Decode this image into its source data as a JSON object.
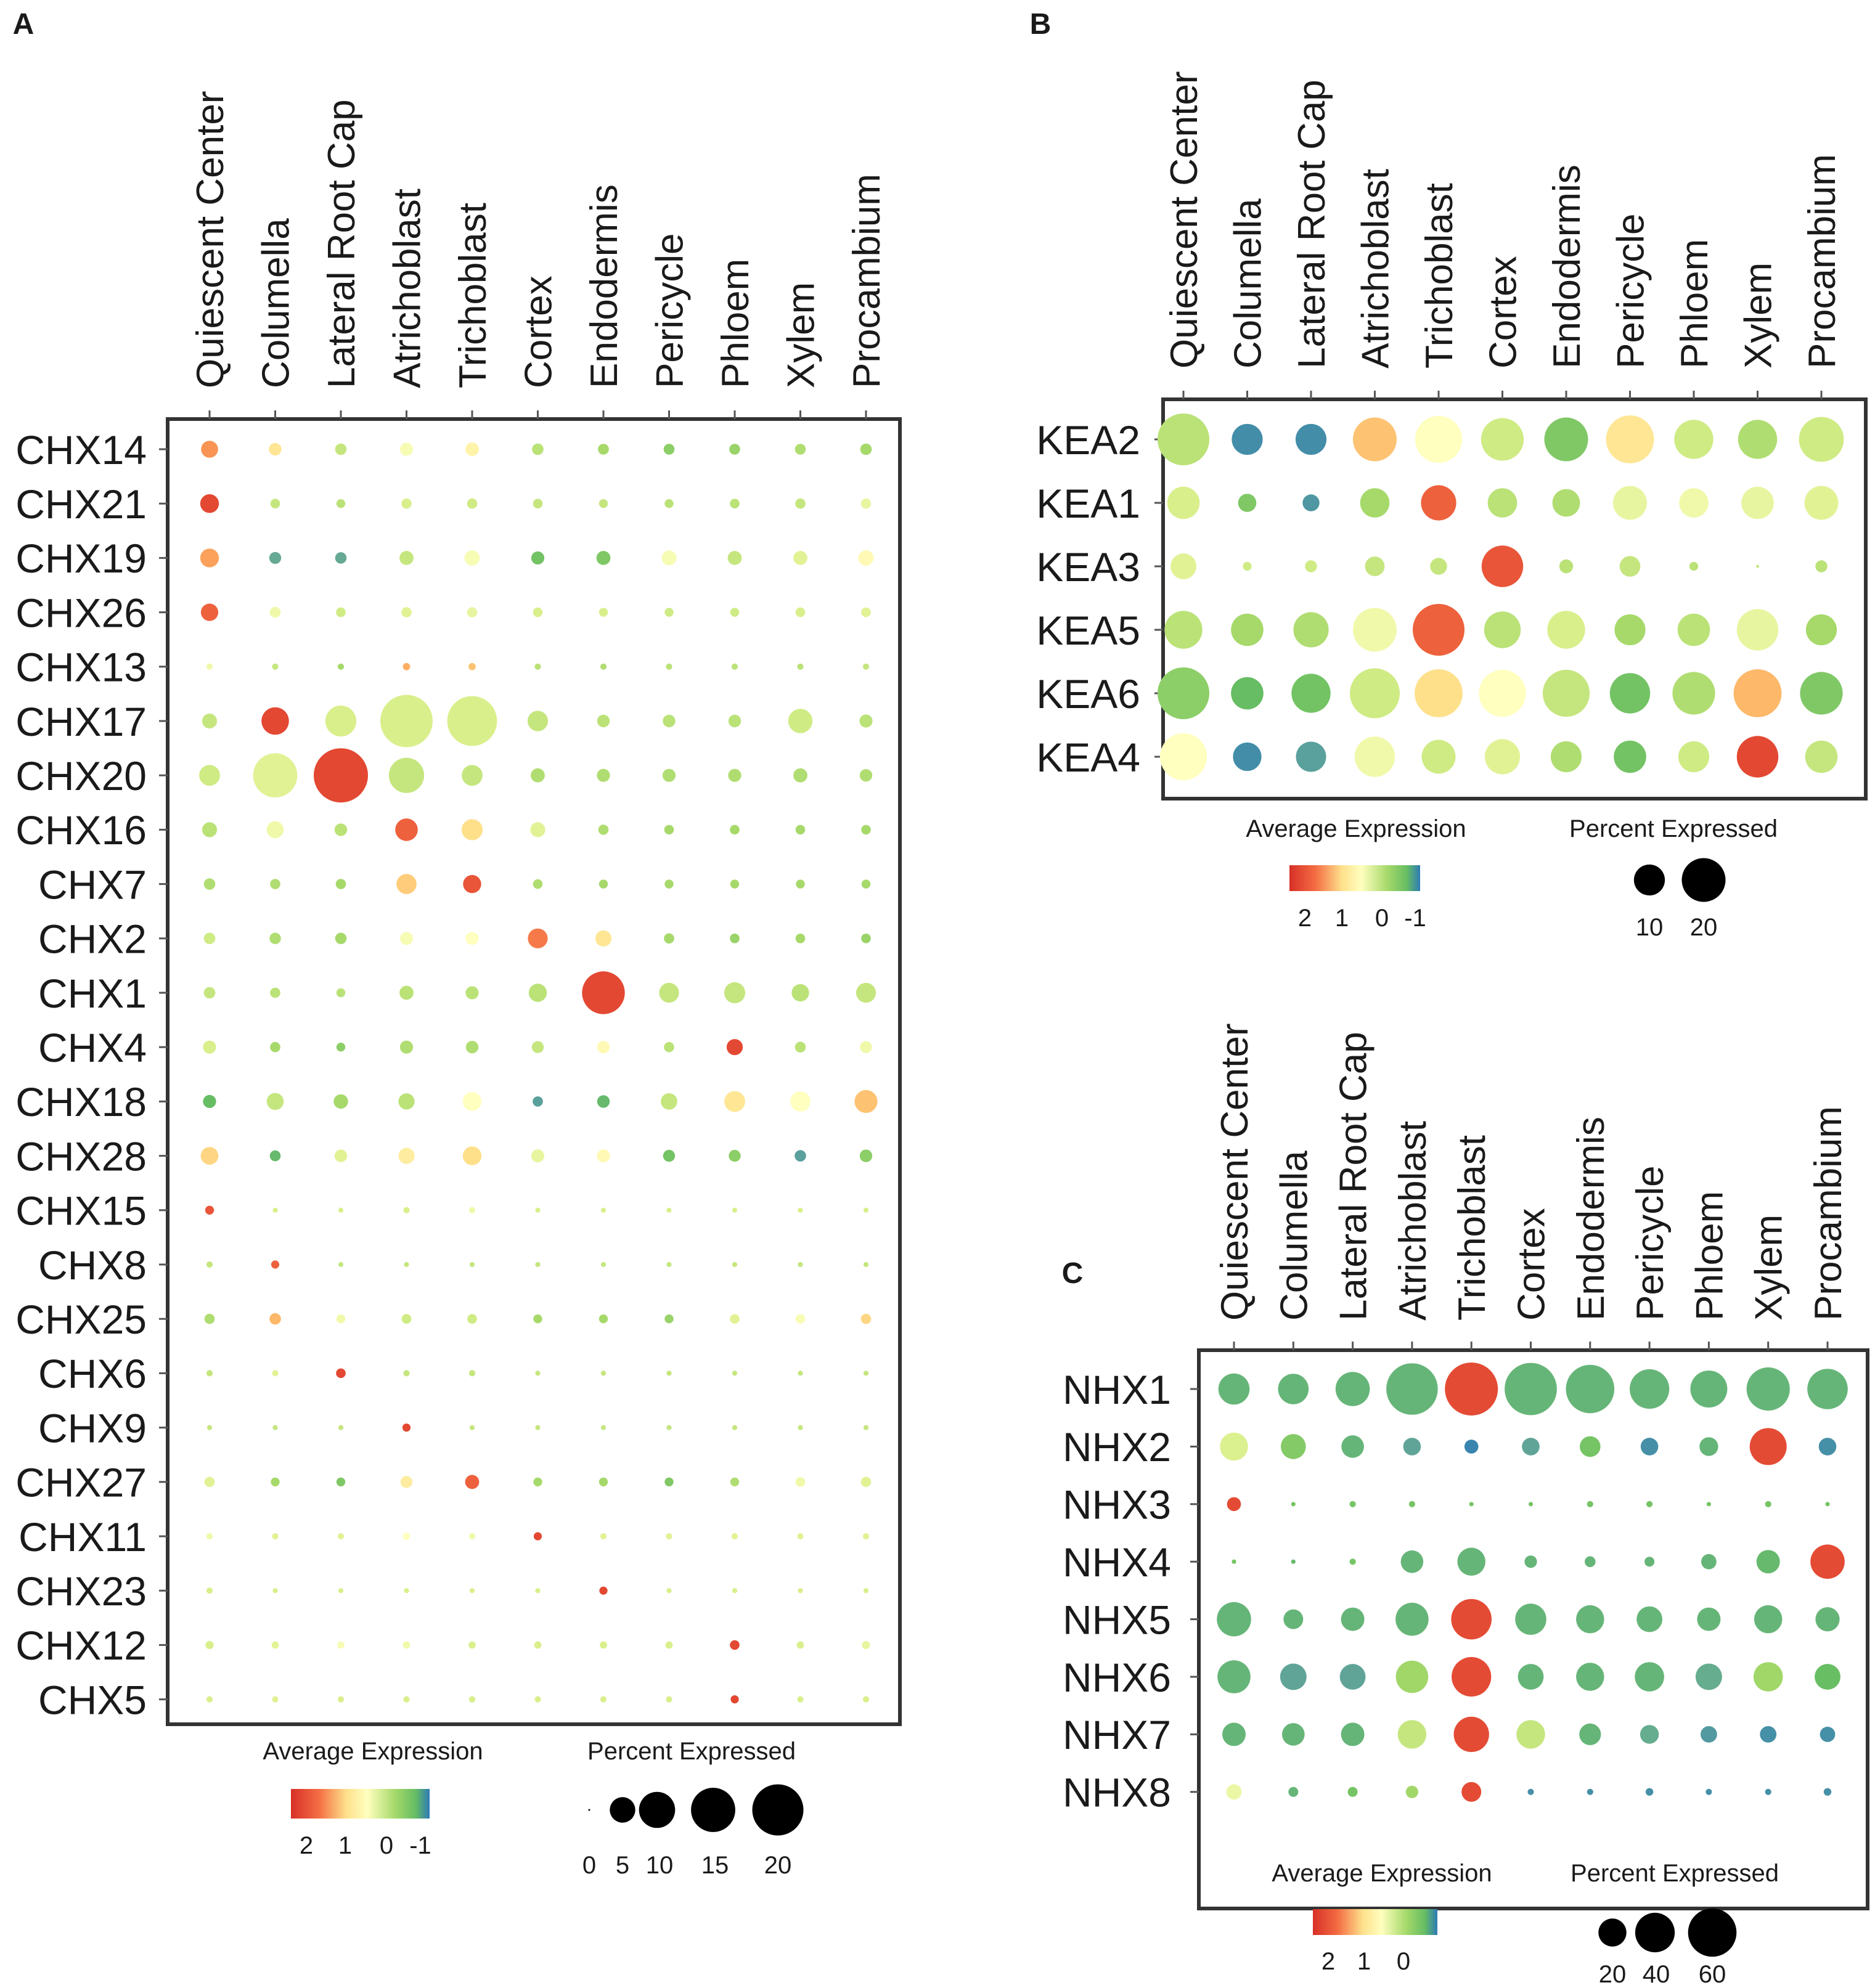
{
  "chart_data": [
    {
      "panel": "A",
      "type": "dotplot",
      "columns": [
        "Quiescent Center",
        "Columella",
        "Lateral Root Cap",
        "Atrichoblast",
        "Trichoblast",
        "Cortex",
        "Endodermis",
        "Pericycle",
        "Phloem",
        "Xylem",
        "Procambium"
      ],
      "rows": [
        "CHX14",
        "CHX21",
        "CHX19",
        "CHX26",
        "CHX13",
        "CHX17",
        "CHX20",
        "CHX16",
        "CHX7",
        "CHX2",
        "CHX1",
        "CHX4",
        "CHX18",
        "CHX28",
        "CHX15",
        "CHX8",
        "CHX25",
        "CHX6",
        "CHX9",
        "CHX27",
        "CHX11",
        "CHX23",
        "CHX12",
        "CHX5"
      ],
      "percent_expressed": [
        [
          2.2,
          1.2,
          1.0,
          1.3,
          1.4,
          1.0,
          0.9,
          0.9,
          0.9,
          0.9,
          1.0
        ],
        [
          2.7,
          0.7,
          0.6,
          0.8,
          0.8,
          0.7,
          0.6,
          0.6,
          0.7,
          0.8,
          0.8
        ],
        [
          2.7,
          1.1,
          1.0,
          1.5,
          1.8,
          1.3,
          1.5,
          1.7,
          1.5,
          1.5,
          1.8
        ],
        [
          2.3,
          0.9,
          0.7,
          0.8,
          0.8,
          0.7,
          0.6,
          0.6,
          0.6,
          0.7,
          0.7
        ],
        [
          0.3,
          0.3,
          0.3,
          0.4,
          0.4,
          0.3,
          0.3,
          0.3,
          0.3,
          0.3,
          0.3
        ],
        [
          1.7,
          5.8,
          7.3,
          21.0,
          19.0,
          3.2,
          1.2,
          1.2,
          1.2,
          4.5,
          1.3
        ],
        [
          3.3,
          15.0,
          22.5,
          9.5,
          3.3,
          1.5,
          1.3,
          1.3,
          1.3,
          1.5,
          1.2
        ],
        [
          1.7,
          2.2,
          1.2,
          3.9,
          3.4,
          1.7,
          0.8,
          0.7,
          0.7,
          0.7,
          0.7
        ],
        [
          1.0,
          0.8,
          0.8,
          3.1,
          2.5,
          0.7,
          0.6,
          0.6,
          0.6,
          0.6,
          0.6
        ],
        [
          1.0,
          1.0,
          1.0,
          1.3,
          1.3,
          3.0,
          2.0,
          0.8,
          0.7,
          0.7,
          0.7
        ],
        [
          1.0,
          0.8,
          0.6,
          1.5,
          1.3,
          2.5,
          14.0,
          3.0,
          3.4,
          2.3,
          3.0
        ],
        [
          1.3,
          0.8,
          0.6,
          1.3,
          1.2,
          1.1,
          1.2,
          0.8,
          2.0,
          0.9,
          1.1
        ],
        [
          1.3,
          2.2,
          1.6,
          2.0,
          2.7,
          0.8,
          1.2,
          2.1,
          3.3,
          3.1,
          4.0
        ],
        [
          2.4,
          0.9,
          1.2,
          2.0,
          2.7,
          1.3,
          1.3,
          1.1,
          1.1,
          1.0,
          1.2
        ],
        [
          0.6,
          0.2,
          0.2,
          0.3,
          0.3,
          0.2,
          0.2,
          0.2,
          0.2,
          0.2,
          0.2
        ],
        [
          0.3,
          0.5,
          0.2,
          0.2,
          0.2,
          0.2,
          0.2,
          0.2,
          0.2,
          0.2,
          0.2
        ],
        [
          0.8,
          1.0,
          0.6,
          0.7,
          0.7,
          0.6,
          0.6,
          0.6,
          0.7,
          0.7,
          0.8
        ],
        [
          0.3,
          0.3,
          0.7,
          0.3,
          0.3,
          0.2,
          0.2,
          0.2,
          0.2,
          0.2,
          0.2
        ],
        [
          0.2,
          0.2,
          0.2,
          0.5,
          0.2,
          0.2,
          0.2,
          0.2,
          0.2,
          0.2,
          0.2
        ],
        [
          0.8,
          0.6,
          0.6,
          1.1,
          1.5,
          0.6,
          0.6,
          0.6,
          0.6,
          0.7,
          0.8
        ],
        [
          0.3,
          0.3,
          0.3,
          0.4,
          0.3,
          0.5,
          0.3,
          0.3,
          0.3,
          0.3,
          0.3
        ],
        [
          0.3,
          0.2,
          0.2,
          0.2,
          0.2,
          0.2,
          0.5,
          0.2,
          0.2,
          0.2,
          0.2
        ],
        [
          0.5,
          0.4,
          0.4,
          0.4,
          0.4,
          0.4,
          0.4,
          0.4,
          0.7,
          0.4,
          0.5
        ],
        [
          0.3,
          0.3,
          0.3,
          0.3,
          0.3,
          0.3,
          0.3,
          0.3,
          0.5,
          0.3,
          0.3
        ]
      ],
      "average_expression": [
        [
          2.2,
          1.4,
          0.3,
          0.9,
          1.2,
          0.2,
          0.0,
          -0.2,
          -0.1,
          0.1,
          0.0
        ],
        [
          2.8,
          0.3,
          0.2,
          0.5,
          0.4,
          0.3,
          0.3,
          0.2,
          0.2,
          0.3,
          0.7
        ],
        [
          2.1,
          -1.0,
          -1.0,
          0.3,
          0.9,
          -0.4,
          -0.3,
          0.9,
          0.3,
          0.6,
          1.1
        ],
        [
          2.6,
          0.8,
          0.4,
          0.6,
          0.7,
          0.5,
          0.5,
          0.4,
          0.4,
          0.5,
          0.6
        ],
        [
          0.8,
          0.3,
          0.0,
          2.0,
          1.8,
          0.2,
          0.1,
          0.2,
          0.2,
          0.2,
          0.3
        ],
        [
          0.3,
          2.8,
          0.5,
          0.5,
          0.5,
          0.3,
          0.2,
          0.2,
          0.2,
          0.4,
          0.2
        ],
        [
          0.4,
          0.6,
          2.8,
          0.3,
          0.3,
          0.1,
          0.1,
          0.1,
          0.1,
          0.1,
          0.1
        ],
        [
          0.2,
          0.8,
          0.2,
          2.6,
          1.5,
          0.6,
          0.1,
          0.0,
          0.0,
          0.0,
          0.0
        ],
        [
          0.1,
          0.1,
          0.0,
          1.7,
          2.7,
          0.1,
          0.0,
          0.0,
          0.0,
          0.0,
          0.0
        ],
        [
          0.4,
          0.1,
          0.0,
          0.9,
          1.0,
          2.4,
          1.4,
          0.0,
          -0.1,
          0.0,
          -0.1
        ],
        [
          0.3,
          0.2,
          0.2,
          0.2,
          0.2,
          0.2,
          2.8,
          0.3,
          0.3,
          0.2,
          0.3
        ],
        [
          0.5,
          0.0,
          -0.2,
          0.1,
          0.1,
          0.3,
          1.1,
          0.2,
          2.8,
          0.2,
          0.8
        ],
        [
          -0.5,
          0.3,
          0.0,
          0.2,
          1.0,
          -1.1,
          -0.6,
          0.3,
          1.4,
          1.0,
          1.8
        ],
        [
          1.6,
          -0.6,
          0.6,
          1.3,
          1.5,
          0.7,
          1.1,
          -0.4,
          -0.2,
          -1.1,
          -0.2
        ],
        [
          2.7,
          0.5,
          0.5,
          0.5,
          0.8,
          0.5,
          0.5,
          0.5,
          0.5,
          0.5,
          0.5
        ],
        [
          0.3,
          2.6,
          0.3,
          0.3,
          0.3,
          0.3,
          0.3,
          0.3,
          0.3,
          0.3,
          0.3
        ],
        [
          0.1,
          1.9,
          0.8,
          0.4,
          0.4,
          0.0,
          0.0,
          -0.1,
          0.6,
          0.9,
          1.6
        ],
        [
          0.3,
          0.6,
          2.8,
          0.3,
          0.3,
          0.3,
          0.3,
          0.3,
          0.3,
          0.3,
          0.3
        ],
        [
          0.3,
          0.3,
          0.3,
          2.8,
          0.3,
          0.3,
          0.3,
          0.3,
          0.3,
          0.3,
          0.3
        ],
        [
          0.6,
          0.0,
          -0.3,
          1.3,
          2.6,
          0.0,
          0.0,
          -0.3,
          0.1,
          0.8,
          0.6
        ],
        [
          0.8,
          0.6,
          0.6,
          1.0,
          0.8,
          2.8,
          0.6,
          0.6,
          0.6,
          0.6,
          0.6
        ],
        [
          0.5,
          0.5,
          0.5,
          0.5,
          0.5,
          0.5,
          2.8,
          0.5,
          0.5,
          0.5,
          0.5
        ],
        [
          0.5,
          0.6,
          0.9,
          0.8,
          0.5,
          0.5,
          0.5,
          0.5,
          2.8,
          0.5,
          0.7
        ],
        [
          0.5,
          0.6,
          0.5,
          0.5,
          0.5,
          0.5,
          0.5,
          0.5,
          2.8,
          0.5,
          0.5
        ]
      ],
      "size_legend_title": "Percent Expressed",
      "size_legend_values": [
        0,
        5,
        10,
        15,
        20
      ],
      "size_legend_labels": [
        "0",
        "5",
        "10",
        "15",
        "20"
      ],
      "color_legend_title": "Average Expression",
      "color_legend_labels": [
        "2",
        "1",
        "0",
        "-1"
      ],
      "color_legend_values": [
        2,
        1,
        0,
        -1
      ],
      "color_range": [
        3,
        -1.5
      ]
    },
    {
      "panel": "B",
      "type": "dotplot",
      "columns": [
        "Quiescent Center",
        "Columella",
        "Lateral Root Cap",
        "Atrichoblast",
        "Trichoblast",
        "Cortex",
        "Endodermis",
        "Pericycle",
        "Phloem",
        "Xylem",
        "Procambium"
      ],
      "rows": [
        "KEA2",
        "KEA1",
        "KEA3",
        "KEA5",
        "KEA6",
        "KEA4"
      ],
      "percent_expressed": [
        [
          28,
          10,
          10,
          20,
          23,
          19,
          20,
          24,
          16,
          16,
          21
        ],
        [
          11,
          3.5,
          3,
          9,
          13,
          9,
          8,
          12,
          9,
          11,
          12
        ],
        [
          7,
          0.8,
          1.5,
          4,
          3,
          18,
          2,
          4.5,
          0.8,
          0.1,
          1.5
        ],
        [
          15,
          11,
          13,
          20,
          28,
          14,
          15,
          10,
          11,
          18,
          10
        ],
        [
          28,
          11,
          16,
          26,
          24,
          23,
          23,
          17,
          19,
          24,
          19
        ],
        [
          23,
          8.5,
          9.5,
          17,
          12,
          13,
          10,
          11,
          10,
          18,
          11
        ]
      ],
      "average_expression": [
        [
          0.2,
          -1.3,
          -1.3,
          1.8,
          1.0,
          0.4,
          -0.3,
          1.4,
          0.4,
          0.1,
          0.4
        ],
        [
          0.5,
          -0.3,
          -1.2,
          0.0,
          2.6,
          0.2,
          0.1,
          0.7,
          0.8,
          0.7,
          0.6
        ],
        [
          0.6,
          0.4,
          0.4,
          0.3,
          0.3,
          2.7,
          0.2,
          0.3,
          0.2,
          0.3,
          0.2
        ],
        [
          0.2,
          0.0,
          0.1,
          0.8,
          2.6,
          0.2,
          0.5,
          0.0,
          0.2,
          0.7,
          0.0
        ],
        [
          -0.2,
          -0.5,
          -0.4,
          0.4,
          1.5,
          1.0,
          0.3,
          -0.4,
          0.1,
          1.9,
          -0.3
        ],
        [
          1.0,
          -1.3,
          -1.1,
          0.8,
          0.4,
          0.6,
          0.1,
          -0.4,
          0.4,
          2.8,
          0.3
        ]
      ],
      "size_legend_title": "Percent Expressed",
      "size_legend_values": [
        10,
        20
      ],
      "size_legend_labels": [
        "10",
        "20"
      ],
      "color_legend_title": "Average Expression",
      "color_legend_labels": [
        "2",
        "1",
        "0",
        "-1"
      ],
      "color_legend_values": [
        2,
        1,
        0,
        -1
      ],
      "color_range": [
        3,
        -1.5
      ]
    },
    {
      "panel": "C",
      "type": "dotplot",
      "columns": [
        "Quiescent Center",
        "Columella",
        "Lateral Root Cap",
        "Atrichoblast",
        "Trichoblast",
        "Cortex",
        "Endodermis",
        "Pericycle",
        "Phloem",
        "Xylem",
        "Procambium"
      ],
      "rows": [
        "NHX1",
        "NHX2",
        "NHX3",
        "NHX4",
        "NHX5",
        "NHX6",
        "NHX7",
        "NHX8"
      ],
      "percent_expressed": [
        [
          25,
          24,
          30,
          68,
          72,
          70,
          60,
          40,
          35,
          48,
          42
        ],
        [
          20,
          16,
          13,
          8,
          5,
          8,
          11,
          8,
          9,
          35,
          8
        ],
        [
          5,
          0.5,
          1,
          1,
          0.5,
          0.5,
          1,
          1,
          0.5,
          1,
          0.5
        ],
        [
          0.5,
          0.5,
          1,
          13,
          20,
          4,
          3,
          2.5,
          6,
          14,
          30
        ],
        [
          30,
          10,
          14,
          28,
          42,
          25,
          20,
          17,
          14,
          20,
          15
        ],
        [
          28,
          18,
          17,
          27,
          40,
          17,
          20,
          22,
          18,
          22,
          17
        ],
        [
          14,
          13,
          14,
          21,
          32,
          21,
          12,
          9,
          7,
          7,
          6
        ],
        [
          6,
          2.5,
          2.5,
          4,
          10,
          1,
          1,
          1.5,
          1,
          1,
          1.5
        ]
      ],
      "average_expression": [
        [
          -0.3,
          -0.3,
          -0.3,
          -0.3,
          2.8,
          -0.3,
          -0.3,
          -0.3,
          -0.3,
          -0.3,
          -0.3
        ],
        [
          0.8,
          0.1,
          -0.3,
          -0.6,
          -0.9,
          -0.6,
          0.0,
          -0.8,
          -0.3,
          2.8,
          -0.8
        ],
        [
          2.8,
          0.0,
          0.0,
          0.0,
          0.0,
          0.0,
          0.0,
          0.0,
          0.0,
          0.0,
          0.0
        ],
        [
          0.0,
          -0.2,
          0.0,
          -0.3,
          -0.3,
          -0.3,
          -0.3,
          -0.3,
          -0.3,
          -0.2,
          2.8
        ],
        [
          -0.3,
          -0.3,
          -0.3,
          -0.3,
          2.8,
          -0.3,
          -0.3,
          -0.3,
          -0.3,
          -0.3,
          -0.3
        ],
        [
          -0.3,
          -0.6,
          -0.6,
          0.3,
          2.8,
          -0.3,
          -0.3,
          -0.3,
          -0.5,
          0.3,
          -0.1
        ],
        [
          -0.3,
          -0.3,
          -0.3,
          0.6,
          2.8,
          0.6,
          -0.3,
          -0.5,
          -0.7,
          -0.8,
          -0.8
        ],
        [
          1.0,
          -0.3,
          0.0,
          0.3,
          2.8,
          -0.8,
          -0.8,
          -0.8,
          -0.8,
          -0.8,
          -0.8
        ]
      ],
      "size_legend_title": "Percent Expressed",
      "size_legend_values": [
        20,
        40,
        60
      ],
      "size_legend_labels": [
        "20",
        "40",
        "60"
      ],
      "color_legend_title": "Average Expression",
      "color_legend_labels": [
        "2",
        "1",
        "0"
      ],
      "color_legend_values": [
        2,
        1,
        0
      ],
      "color_range": [
        3,
        -1
      ]
    }
  ],
  "colors": {
    "ramp": [
      "#d73027",
      "#f46d43",
      "#fdae61",
      "#fee08b",
      "#ffffbf",
      "#d9ef8b",
      "#a6d96a",
      "#66bd63",
      "#66a995",
      "#2c7bb6"
    ],
    "frame": "#333333",
    "text": "#1a1a1a",
    "legend_dot": "#000000"
  }
}
